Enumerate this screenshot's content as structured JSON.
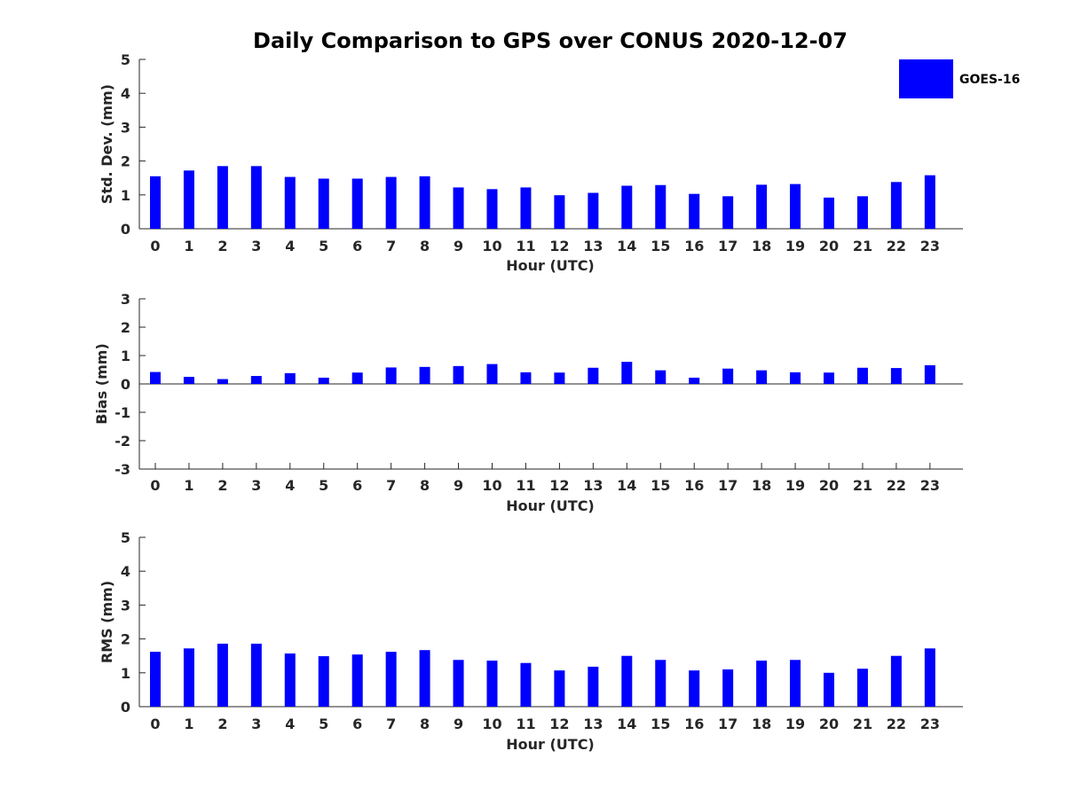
{
  "chart_data": {
    "title": "Daily Comparison to GPS over CONUS 2020-12-07",
    "type": "bar",
    "legend": {
      "entries": [
        "GOES-16"
      ],
      "placement": "top-right"
    },
    "series_color": "#0000ff",
    "categories": [
      "0",
      "1",
      "2",
      "3",
      "4",
      "5",
      "6",
      "7",
      "8",
      "9",
      "10",
      "11",
      "12",
      "13",
      "14",
      "15",
      "16",
      "17",
      "18",
      "19",
      "20",
      "21",
      "22",
      "23"
    ],
    "panels": [
      {
        "id": "std",
        "type": "bar",
        "xlabel": "Hour (UTC)",
        "ylabel": "Std. Dev. (mm)",
        "ylim": [
          0,
          5
        ],
        "yticks": [
          "0",
          "1",
          "2",
          "3",
          "4",
          "5"
        ],
        "series": [
          {
            "name": "GOES-16",
            "values": [
              1.55,
              1.72,
              1.85,
              1.85,
              1.53,
              1.48,
              1.48,
              1.53,
              1.55,
              1.22,
              1.17,
              1.22,
              0.99,
              1.06,
              1.27,
              1.29,
              1.03,
              0.96,
              1.3,
              1.32,
              0.92,
              0.96,
              1.38,
              1.58
            ]
          }
        ]
      },
      {
        "id": "bias",
        "type": "bar",
        "xlabel": "Hour (UTC)",
        "ylabel": "Bias (mm)",
        "ylim": [
          -3,
          3
        ],
        "yticks": [
          "-3",
          "-2",
          "-1",
          "0",
          "1",
          "2",
          "3"
        ],
        "series": [
          {
            "name": "GOES-16",
            "values": [
              0.42,
              0.25,
              0.17,
              0.28,
              0.38,
              0.22,
              0.4,
              0.58,
              0.6,
              0.63,
              0.7,
              0.41,
              0.4,
              0.57,
              0.78,
              0.48,
              0.22,
              0.54,
              0.48,
              0.41,
              0.4,
              0.57,
              0.56,
              0.66
            ]
          }
        ]
      },
      {
        "id": "rms",
        "type": "bar",
        "xlabel": "Hour (UTC)",
        "ylabel": "RMS (mm)",
        "ylim": [
          0,
          5
        ],
        "yticks": [
          "0",
          "1",
          "2",
          "3",
          "4",
          "5"
        ],
        "series": [
          {
            "name": "GOES-16",
            "values": [
              1.62,
              1.72,
              1.86,
              1.86,
              1.57,
              1.49,
              1.54,
              1.62,
              1.67,
              1.38,
              1.36,
              1.29,
              1.07,
              1.18,
              1.5,
              1.38,
              1.07,
              1.1,
              1.36,
              1.38,
              1.0,
              1.12,
              1.5,
              1.72
            ]
          }
        ]
      }
    ]
  }
}
